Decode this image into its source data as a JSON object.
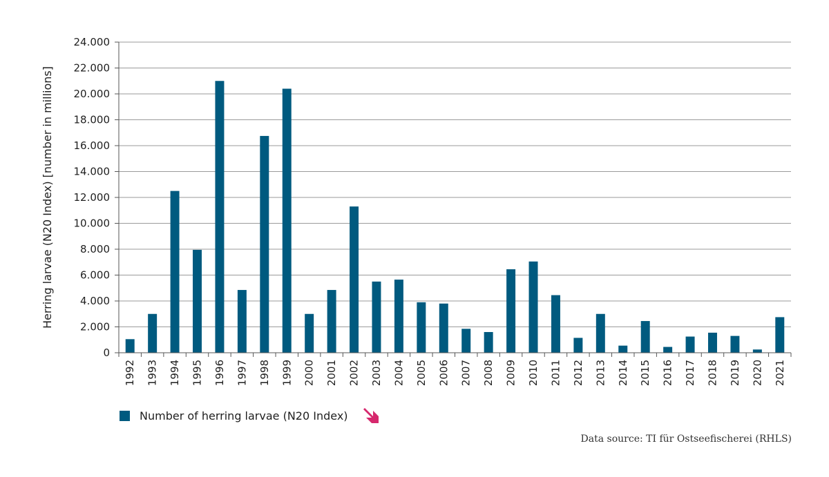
{
  "colors": {
    "bar": "#005a7f",
    "grid": "#9a9a9a",
    "axis": "#555555",
    "trend_arrow": "#d6286d"
  },
  "legend": {
    "label": "Number of herring larvae (N20 Index)",
    "trend_icon": "trend-down-arrow"
  },
  "source": {
    "text": "Data source: TI für Ostseefischerei (RHLS)"
  },
  "chart_data": {
    "type": "bar",
    "ylabel": "Herring larvae (N20 Index) [number in millions]",
    "xlabel": "",
    "ylim": [
      0,
      24000
    ],
    "yticks": [
      {
        "value": 0,
        "label": "0"
      },
      {
        "value": 2000,
        "label": "2.000"
      },
      {
        "value": 4000,
        "label": "4.000"
      },
      {
        "value": 6000,
        "label": "6.000"
      },
      {
        "value": 8000,
        "label": "8.000"
      },
      {
        "value": 10000,
        "label": "10.000"
      },
      {
        "value": 12000,
        "label": "12.000"
      },
      {
        "value": 14000,
        "label": "14.000"
      },
      {
        "value": 16000,
        "label": "16.000"
      },
      {
        "value": 18000,
        "label": "18.000"
      },
      {
        "value": 20000,
        "label": "20.000"
      },
      {
        "value": 22000,
        "label": "22.000"
      },
      {
        "value": 24000,
        "label": "24.000"
      }
    ],
    "grid": true,
    "legend_position": "bottom-left",
    "categories": [
      "1992",
      "1993",
      "1994",
      "1995",
      "1996",
      "1997",
      "1998",
      "1999",
      "2000",
      "2001",
      "2002",
      "2003",
      "2004",
      "2005",
      "2006",
      "2007",
      "2008",
      "2009",
      "2010",
      "2011",
      "2012",
      "2013",
      "2014",
      "2015",
      "2016",
      "2017",
      "2018",
      "2019",
      "2020",
      "2021"
    ],
    "series": [
      {
        "name": "Number of herring larvae (N20 Index)",
        "values": [
          1050,
          3000,
          12500,
          7950,
          21000,
          4850,
          16750,
          20400,
          3000,
          4850,
          11300,
          5500,
          5650,
          3900,
          3800,
          1850,
          1600,
          6450,
          7050,
          4450,
          1150,
          3000,
          550,
          2450,
          450,
          1250,
          1550,
          1300,
          250,
          2750
        ]
      }
    ]
  }
}
